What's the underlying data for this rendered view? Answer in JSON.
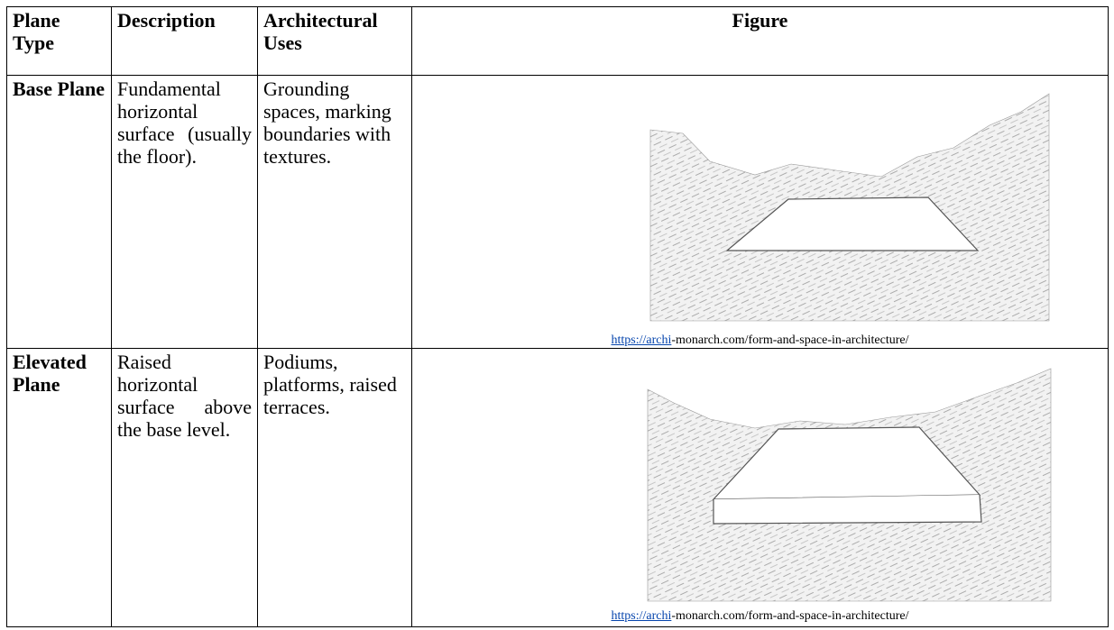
{
  "table": {
    "header": [
      "Plane Type",
      "Description",
      "Architectural Uses",
      "Figure"
    ],
    "rows": [
      [
        "Base Plane",
        "Fundamental horizontal surface (usually the floor).",
        "Grounding spaces, marking boundaries with textures."
      ],
      [
        "Elevated Plane",
        "Raised horizontal surface above the base level.",
        "Podiums, platforms, raised terraces."
      ]
    ],
    "captions": [
      {
        "link": "https://archi",
        "rest": "-monarch.com/form-and-space-in-architecture/"
      },
      {
        "link": "https://archi",
        "rest": "-monarch.com/form-and-space-in-architecture/"
      }
    ]
  }
}
